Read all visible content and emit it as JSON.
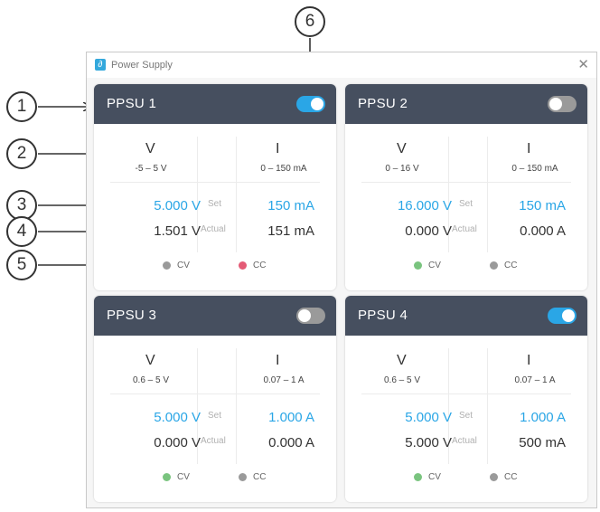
{
  "window": {
    "title": "Power Supply",
    "close_glyph": "✕"
  },
  "callouts": [
    "1",
    "2",
    "3",
    "4",
    "5",
    "6"
  ],
  "labels": {
    "set": "Set",
    "actual": "Actual",
    "cv": "CV",
    "cc": "CC",
    "v_head": "V",
    "i_head": "I"
  },
  "colors": {
    "accent": "#2aa6e6",
    "header": "#464f5f",
    "cv_active": "#7ac47f",
    "cc_active": "#e45b76",
    "inactive": "#9a9a9a"
  },
  "panels": [
    {
      "name": "PPSU 1",
      "enabled": true,
      "v_range": "-5 – 5 V",
      "i_range": "0 – 150 mA",
      "v_set": "5.000 V",
      "i_set": "150 mA",
      "v_actual": "1.501 V",
      "i_actual": "151 mA",
      "cv_state": "inactive",
      "cc_state": "active"
    },
    {
      "name": "PPSU 2",
      "enabled": false,
      "v_range": "0 – 16 V",
      "i_range": "0 – 150 mA",
      "v_set": "16.000 V",
      "i_set": "150 mA",
      "v_actual": "0.000 V",
      "i_actual": "0.000 A",
      "cv_state": "active",
      "cc_state": "inactive"
    },
    {
      "name": "PPSU 3",
      "enabled": false,
      "v_range": "0.6 – 5 V",
      "i_range": "0.07 – 1 A",
      "v_set": "5.000 V",
      "i_set": "1.000 A",
      "v_actual": "0.000 V",
      "i_actual": "0.000 A",
      "cv_state": "active",
      "cc_state": "inactive"
    },
    {
      "name": "PPSU 4",
      "enabled": true,
      "v_range": "0.6 – 5 V",
      "i_range": "0.07 – 1 A",
      "v_set": "5.000 V",
      "i_set": "1.000 A",
      "v_actual": "5.000 V",
      "i_actual": "500 mA",
      "cv_state": "active",
      "cc_state": "inactive"
    }
  ]
}
